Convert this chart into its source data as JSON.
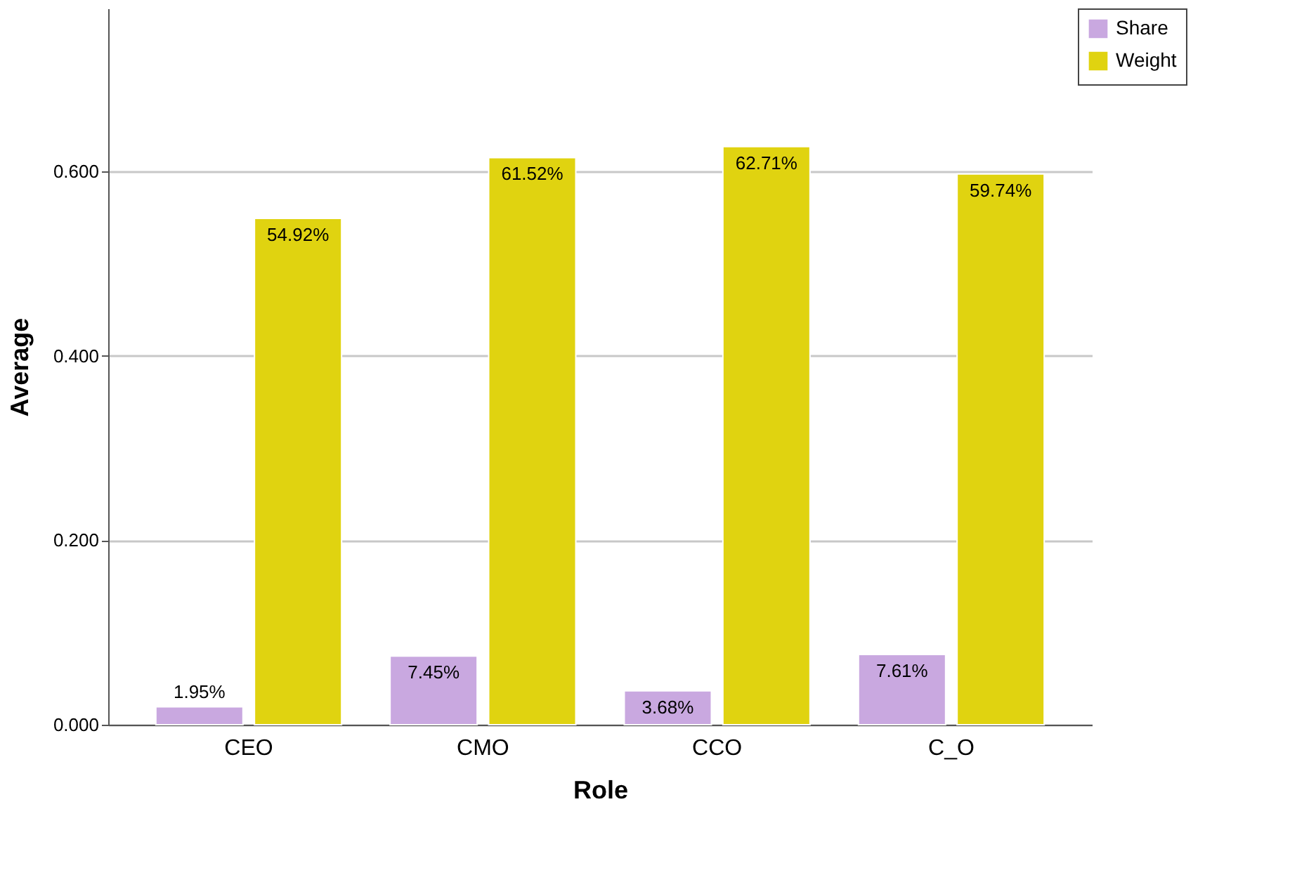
{
  "chart_data": {
    "type": "bar",
    "xlabel": "Role",
    "ylabel": "Average",
    "categories": [
      "CEO",
      "CMO",
      "CCO",
      "C_O"
    ],
    "series": [
      {
        "name": "Share",
        "color": "#c9a8e0",
        "values": [
          0.0195,
          0.0745,
          0.0368,
          0.0761
        ],
        "value_labels": [
          "1.95%",
          "7.45%",
          "3.68%",
          "7.61%"
        ]
      },
      {
        "name": "Weight",
        "color": "#e0d310",
        "values": [
          0.5492,
          0.6152,
          0.6271,
          0.5974
        ],
        "value_labels": [
          "54.92%",
          "61.52%",
          "62.71%",
          "59.74%"
        ]
      }
    ],
    "ylim": [
      0,
      0.777
    ],
    "yticks": [
      {
        "value": 0,
        "label": "0.000"
      },
      {
        "value": 0.2,
        "label": "0.200"
      },
      {
        "value": 0.4,
        "label": "0.400"
      },
      {
        "value": 0.6,
        "label": "0.600"
      }
    ],
    "grid": "y",
    "legend": "top right"
  }
}
